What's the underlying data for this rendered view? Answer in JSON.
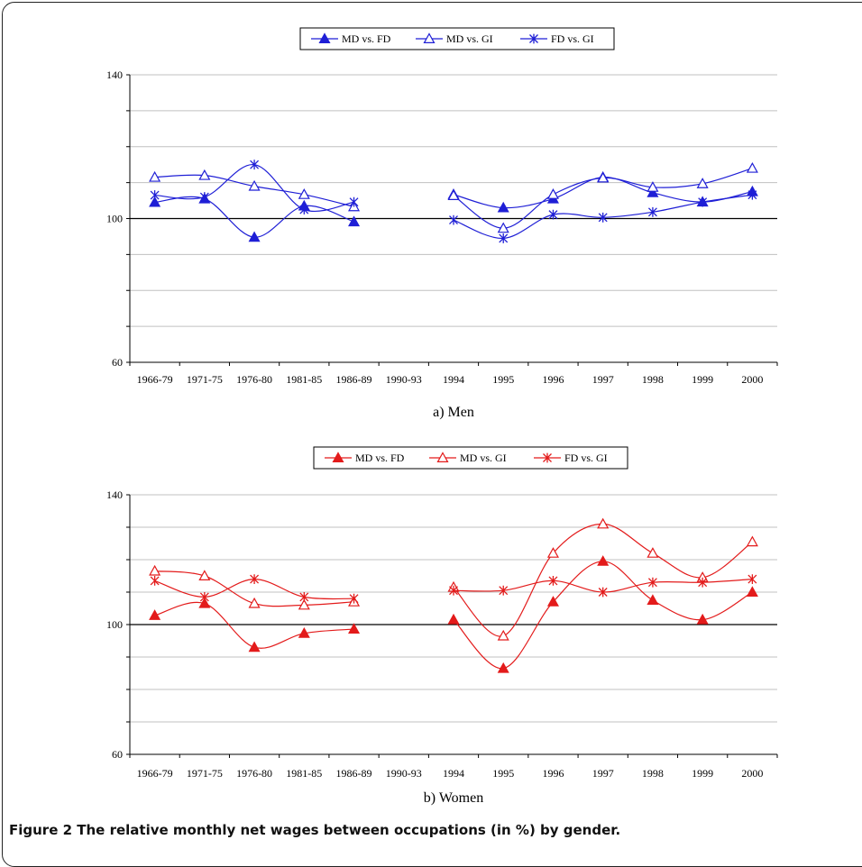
{
  "caption": "Figure 2 The relative monthly net wages between occupations (in %) by gender.",
  "chart_data": [
    {
      "type": "line",
      "sublabel": "a) Men",
      "color": "#1f1fd6",
      "categories": [
        "1966-79",
        "1971-75",
        "1976-80",
        "1981-85",
        "1986-89",
        "1990-93",
        "1994",
        "1995",
        "1996",
        "1997",
        "1998",
        "1999",
        "2000"
      ],
      "yticks": [
        "60",
        "100",
        "140"
      ],
      "ylim": [
        60,
        140
      ],
      "grid": true,
      "legend_position": "top-center",
      "series": [
        {
          "name": "MD vs. FD",
          "marker": "triangle-filled",
          "values": [
            104.5,
            105.5,
            94.8,
            103.5,
            99.1,
            null,
            106.7,
            103.0,
            105.5,
            111.5,
            107.2,
            104.6,
            107.5
          ]
        },
        {
          "name": "MD vs. GI",
          "marker": "triangle-open",
          "values": [
            111.5,
            112.0,
            109.0,
            106.7,
            103.3,
            null,
            106.4,
            97.3,
            106.7,
            111.3,
            108.7,
            109.7,
            114.0
          ]
        },
        {
          "name": "FD vs. GI",
          "marker": "asterisk",
          "values": [
            106.5,
            106.0,
            115.0,
            102.5,
            104.6,
            null,
            99.6,
            94.5,
            101.1,
            100.3,
            101.8,
            104.6,
            106.6
          ]
        }
      ]
    },
    {
      "type": "line",
      "sublabel": "b) Women",
      "color": "#e31b1b",
      "categories": [
        "1966-79",
        "1971-75",
        "1976-80",
        "1981-85",
        "1986-89",
        "1990-93",
        "1994",
        "1995",
        "1996",
        "1997",
        "1998",
        "1999",
        "2000"
      ],
      "yticks": [
        "60",
        "100",
        "140"
      ],
      "ylim": [
        60,
        140
      ],
      "grid": true,
      "legend_position": "top-center",
      "series": [
        {
          "name": "MD vs. FD",
          "marker": "triangle-filled",
          "values": [
            102.8,
            106.5,
            93.0,
            97.3,
            98.6,
            null,
            101.5,
            86.5,
            107.0,
            119.5,
            107.5,
            101.5,
            110.0
          ]
        },
        {
          "name": "MD vs. GI",
          "marker": "triangle-open",
          "values": [
            116.5,
            115.0,
            106.5,
            106.0,
            107.0,
            null,
            111.5,
            96.5,
            122.0,
            131.0,
            122.0,
            114.5,
            125.5
          ]
        },
        {
          "name": "FD vs. GI",
          "marker": "asterisk",
          "values": [
            113.5,
            108.5,
            114.0,
            108.5,
            108.0,
            null,
            110.5,
            110.5,
            113.5,
            110.0,
            113.0,
            113.0,
            114.0
          ]
        }
      ]
    }
  ]
}
